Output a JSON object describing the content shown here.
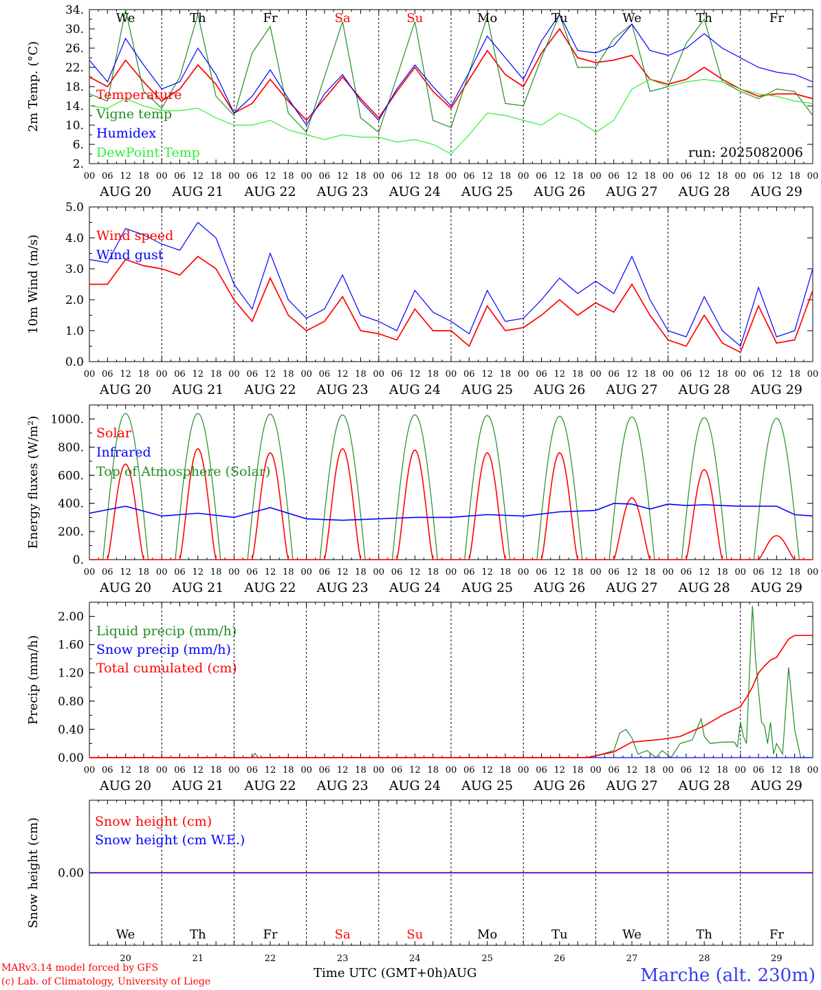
{
  "chart_data": [
    {
      "type": "line",
      "ylabel": "2m Temp. (°C)",
      "ylim": [
        2,
        34
      ],
      "ytick_labels": [
        "2.",
        "6.",
        "10.",
        "14.",
        "18.",
        "22.",
        "26.",
        "30.",
        "34."
      ],
      "run_label": "run: 2025082006",
      "x_hours": [
        0,
        6,
        12,
        18,
        24,
        30,
        36,
        42,
        48,
        54,
        60,
        66,
        72,
        78,
        84,
        90,
        96,
        102,
        108,
        114,
        120,
        126,
        132,
        138,
        144,
        150,
        156,
        162,
        168,
        174,
        180,
        186,
        192,
        198,
        204,
        210,
        216,
        222,
        228,
        234,
        240
      ],
      "series": [
        {
          "name": "Temperature",
          "color": "#ff0000",
          "values": [
            20.0,
            18.0,
            23.5,
            19.0,
            15.0,
            17.5,
            22.5,
            18.5,
            12.5,
            14.5,
            19.5,
            15.0,
            11.0,
            15.5,
            20.0,
            15.5,
            11.5,
            17.0,
            22.0,
            17.0,
            13.5,
            19.5,
            25.5,
            20.5,
            18.0,
            25.0,
            30.0,
            24.0,
            23.0,
            23.5,
            24.5,
            19.5,
            18.5,
            19.5,
            22.0,
            19.5,
            17.5,
            16.0,
            16.5,
            16.5,
            15.5
          ]
        },
        {
          "name": "Vigne temp",
          "color": "#228b22",
          "values": [
            16.5,
            15.0,
            34.0,
            17.0,
            13.5,
            20.0,
            33.0,
            16.0,
            12.0,
            25.0,
            30.5,
            12.5,
            8.5,
            20.0,
            31.5,
            11.5,
            8.5,
            20.0,
            31.5,
            11.0,
            9.5,
            21.0,
            32.5,
            14.5,
            14.0,
            24.0,
            33.0,
            22.0,
            22.0,
            28.0,
            31.0,
            17.0,
            18.0,
            27.0,
            32.0,
            19.0,
            17.0,
            15.5,
            17.5,
            17.0,
            12.0
          ]
        },
        {
          "name": "Humidex",
          "color": "#0000ff",
          "values": [
            23.5,
            19.0,
            28.0,
            22.5,
            17.5,
            19.0,
            26.0,
            20.5,
            12.5,
            16.0,
            21.5,
            15.5,
            10.0,
            16.5,
            20.5,
            15.0,
            11.0,
            17.5,
            22.5,
            18.0,
            14.0,
            21.0,
            28.5,
            24.0,
            19.5,
            27.5,
            33.0,
            25.5,
            25.0,
            26.5,
            31.0,
            25.5,
            24.5,
            26.0,
            29.0,
            26.0,
            24.0,
            22.0,
            21.0,
            20.5,
            19.0
          ]
        },
        {
          "name": "DewPoint Temp",
          "color": "#33ee33",
          "values": [
            14.0,
            13.5,
            15.5,
            14.0,
            13.0,
            13.0,
            13.5,
            11.5,
            10.0,
            10.0,
            11.0,
            9.0,
            8.0,
            7.0,
            8.0,
            7.5,
            7.5,
            6.5,
            7.0,
            6.0,
            4.0,
            8.0,
            12.5,
            12.0,
            11.0,
            10.0,
            12.5,
            11.0,
            8.5,
            11.0,
            17.5,
            19.5,
            18.0,
            19.0,
            19.5,
            19.0,
            17.5,
            16.5,
            16.0,
            15.0,
            14.5
          ]
        }
      ]
    },
    {
      "type": "line",
      "ylabel": "10m Wind (m/s)",
      "ylim": [
        0,
        5
      ],
      "ytick_labels": [
        "0.0",
        "1.0",
        "2.0",
        "3.0",
        "4.0",
        "5.0"
      ],
      "x_hours": [
        0,
        6,
        12,
        18,
        24,
        30,
        36,
        42,
        48,
        54,
        60,
        66,
        72,
        78,
        84,
        90,
        96,
        102,
        108,
        114,
        120,
        126,
        132,
        138,
        144,
        150,
        156,
        162,
        168,
        174,
        180,
        186,
        192,
        198,
        204,
        210,
        216,
        222,
        228,
        234,
        240
      ],
      "series": [
        {
          "name": "Wind speed",
          "color": "#ff0000",
          "values": [
            2.5,
            2.5,
            3.3,
            3.1,
            3.0,
            2.8,
            3.4,
            3.0,
            2.0,
            1.3,
            2.7,
            1.5,
            1.0,
            1.3,
            2.1,
            1.0,
            0.9,
            0.7,
            1.7,
            1.0,
            1.0,
            0.5,
            1.8,
            1.0,
            1.1,
            1.5,
            2.0,
            1.5,
            1.9,
            1.6,
            2.5,
            1.5,
            0.7,
            0.5,
            1.5,
            0.6,
            0.3,
            1.8,
            0.6,
            0.7,
            2.3
          ]
        },
        {
          "name": "Wind gust",
          "color": "#0000ff",
          "values": [
            3.3,
            3.2,
            4.3,
            4.1,
            3.8,
            3.6,
            4.5,
            4.0,
            2.5,
            1.7,
            3.5,
            2.0,
            1.4,
            1.7,
            2.8,
            1.5,
            1.3,
            1.0,
            2.3,
            1.6,
            1.3,
            0.9,
            2.3,
            1.3,
            1.4,
            2.0,
            2.7,
            2.2,
            2.6,
            2.2,
            3.4,
            2.0,
            1.0,
            0.8,
            2.1,
            1.0,
            0.5,
            2.4,
            0.8,
            1.0,
            3.0
          ]
        }
      ]
    },
    {
      "type": "line",
      "ylabel": "Energy fluxes (W/m²)",
      "ylim": [
        0,
        1100
      ],
      "ytick_labels": [
        "0.",
        "200.",
        "400.",
        "600.",
        "800.",
        "1000."
      ],
      "toa_peaks": [
        1040,
        1040,
        1035,
        1030,
        1030,
        1025,
        1020,
        1015,
        1010,
        1005
      ],
      "solar_peaks": [
        680,
        790,
        760,
        790,
        780,
        760,
        760,
        440,
        640,
        170
      ],
      "series": [
        {
          "name": "Solar",
          "color": "#ff0000"
        },
        {
          "name": "Infrared",
          "color": "#0000ff",
          "x_hours": [
            0,
            12,
            24,
            36,
            48,
            60,
            72,
            84,
            96,
            108,
            120,
            132,
            144,
            156,
            168,
            174,
            180,
            186,
            192,
            198,
            204,
            210,
            216,
            222,
            228,
            234,
            240
          ],
          "values": [
            330,
            380,
            310,
            330,
            300,
            370,
            290,
            280,
            290,
            300,
            300,
            320,
            310,
            340,
            350,
            400,
            395,
            360,
            395,
            385,
            390,
            385,
            380,
            380,
            380,
            320,
            310
          ]
        },
        {
          "name": "Top of Atmosphere (Solar)",
          "color": "#228b22"
        }
      ]
    },
    {
      "type": "line",
      "ylabel": "Precip (mm/h)",
      "ylim": [
        0,
        2.2
      ],
      "ytick_labels": [
        "0.00",
        "0.40",
        "0.80",
        "1.20",
        "1.60",
        "2.00"
      ],
      "series": [
        {
          "name": "Liquid precip (mm/h)",
          "color": "#228b22",
          "x_hours": [
            0,
            54,
            55,
            56,
            165,
            170,
            174,
            176,
            178,
            180,
            182,
            185,
            188,
            190,
            193,
            196,
            200,
            203,
            204,
            205,
            206,
            210,
            214,
            215,
            216,
            217,
            218,
            219,
            220,
            221,
            223,
            224,
            225,
            226,
            227,
            228,
            230,
            232,
            234,
            236,
            240
          ],
          "values": [
            0,
            0,
            0.06,
            0,
            0,
            0.05,
            0.1,
            0.35,
            0.4,
            0.28,
            0.05,
            0.1,
            0,
            0.1,
            0,
            0.2,
            0.25,
            0.55,
            0.3,
            0.25,
            0.2,
            0.22,
            0.22,
            0.15,
            0.5,
            0.3,
            0.2,
            1.2,
            2.15,
            1.4,
            0.5,
            0.45,
            0.2,
            0.5,
            0.05,
            0.2,
            0.05,
            1.28,
            0.4,
            0,
            0
          ]
        },
        {
          "name": "Snow precip (mm/h)",
          "color": "#0000ff",
          "x_hours": [
            0,
            240
          ],
          "values": [
            0,
            0
          ]
        },
        {
          "name": "Total cumulated (cm)",
          "color": "#ff0000",
          "x_hours": [
            0,
            165,
            174,
            180,
            190,
            196,
            204,
            210,
            216,
            218,
            220,
            222,
            224,
            226,
            228,
            230,
            232,
            234,
            240
          ],
          "values": [
            0,
            0,
            0.08,
            0.22,
            0.26,
            0.3,
            0.45,
            0.6,
            0.72,
            0.85,
            1.0,
            1.2,
            1.3,
            1.38,
            1.42,
            1.55,
            1.68,
            1.73,
            1.73
          ]
        }
      ]
    },
    {
      "type": "line",
      "ylabel": "Snow height (cm)",
      "ylim": [
        -1,
        1
      ],
      "ytick_labels": [
        "0.00"
      ],
      "series": [
        {
          "name": "Snow height (cm)",
          "color": "#ff0000",
          "x_hours": [
            0,
            240
          ],
          "values": [
            0,
            0
          ]
        },
        {
          "name": "Snow height (cm W.E.)",
          "color": "#0000ff",
          "x_hours": [
            0,
            240
          ],
          "values": [
            0,
            0
          ]
        }
      ]
    }
  ],
  "hour_tick_labels": [
    "00",
    "06",
    "12",
    "18"
  ],
  "final_hour_label": "00",
  "days": [
    {
      "dow": "We",
      "date": "AUG 20",
      "num": "20",
      "weekend": false
    },
    {
      "dow": "Th",
      "date": "AUG 21",
      "num": "21",
      "weekend": false
    },
    {
      "dow": "Fr",
      "date": "AUG 22",
      "num": "22",
      "weekend": false
    },
    {
      "dow": "Sa",
      "date": "AUG 23",
      "num": "23",
      "weekend": true
    },
    {
      "dow": "Su",
      "date": "AUG 24",
      "num": "24",
      "weekend": true
    },
    {
      "dow": "Mo",
      "date": "AUG 25",
      "num": "25",
      "weekend": false
    },
    {
      "dow": "Tu",
      "date": "AUG 26",
      "num": "26",
      "weekend": false
    },
    {
      "dow": "We",
      "date": "AUG 27",
      "num": "27",
      "weekend": false
    },
    {
      "dow": "Th",
      "date": "AUG 28",
      "num": "28",
      "weekend": false
    },
    {
      "dow": "Fr",
      "date": "AUG 29",
      "num": "29",
      "weekend": false
    }
  ],
  "footer": {
    "model_line": "MARv3.14 model forced by GFS",
    "credit_line": "(c) Lab. of Climatology, University of Liege",
    "xaxis_title": "Time UTC (GMT+0h)AUG",
    "station": "Marche (alt. 230m)"
  }
}
